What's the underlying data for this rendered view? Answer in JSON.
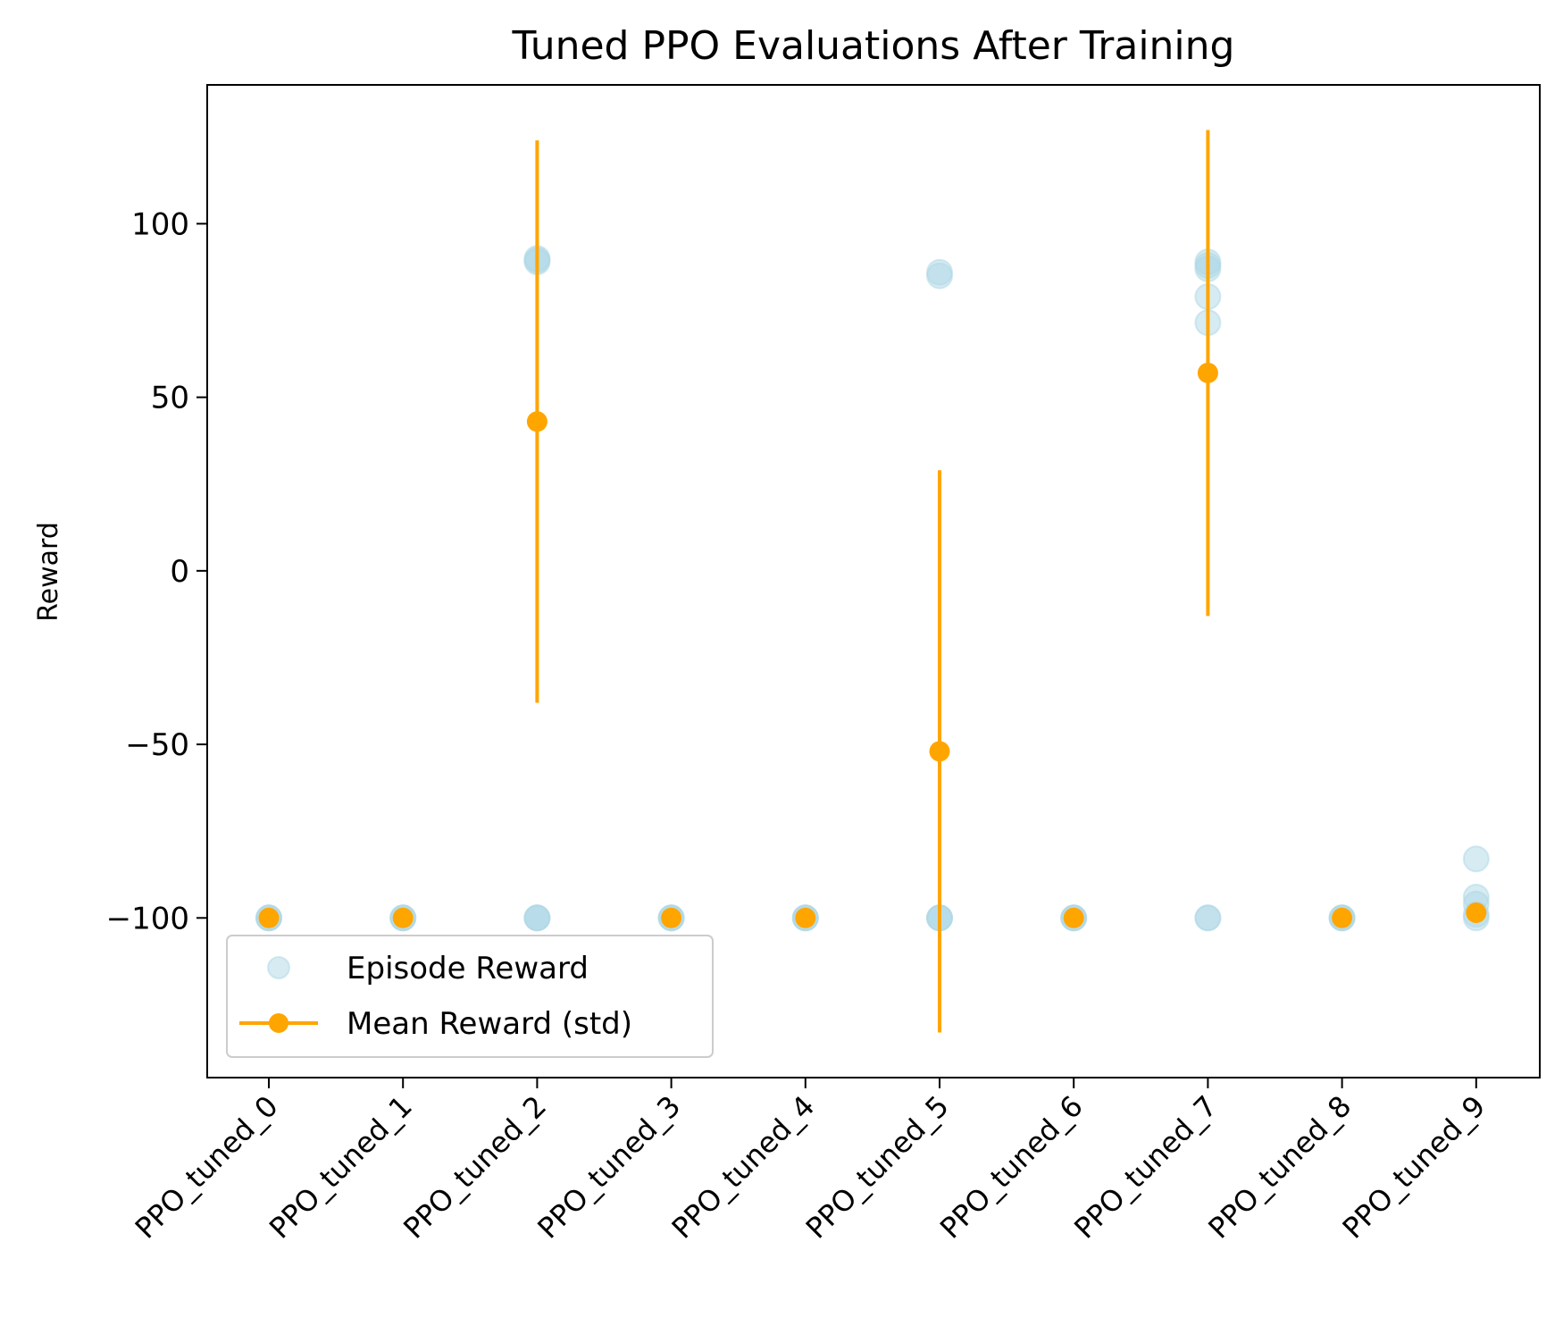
{
  "chart_data": {
    "type": "scatter",
    "title": "Tuned PPO Evaluations After Training",
    "xlabel": "",
    "ylabel": "Reward",
    "categories": [
      "PPO_tuned_0",
      "PPO_tuned_1",
      "PPO_tuned_2",
      "PPO_tuned_3",
      "PPO_tuned_4",
      "PPO_tuned_5",
      "PPO_tuned_6",
      "PPO_tuned_7",
      "PPO_tuned_8",
      "PPO_tuned_9"
    ],
    "ylim": [
      -146,
      140
    ],
    "yticks": [
      100,
      50,
      0,
      -50,
      -100
    ],
    "ytick_labels": [
      "100",
      "50",
      "0",
      "−50",
      "−100"
    ],
    "grid": false,
    "legend": {
      "position": "lower-left",
      "entries": [
        "Episode Reward",
        "Mean Reward (std)"
      ]
    },
    "series": [
      {
        "name": "Episode Reward",
        "kind": "scatter",
        "color": "#add8e6",
        "points": [
          {
            "x": 0,
            "y": -100
          },
          {
            "x": 0,
            "y": -100
          },
          {
            "x": 0,
            "y": -100
          },
          {
            "x": 1,
            "y": -100
          },
          {
            "x": 1,
            "y": -100
          },
          {
            "x": 1,
            "y": -100
          },
          {
            "x": 2,
            "y": 89
          },
          {
            "x": 2,
            "y": 90
          },
          {
            "x": 2,
            "y": 89.5
          },
          {
            "x": 2,
            "y": -100
          },
          {
            "x": 2,
            "y": -100
          },
          {
            "x": 2,
            "y": -100
          },
          {
            "x": 3,
            "y": -100
          },
          {
            "x": 3,
            "y": -100
          },
          {
            "x": 3,
            "y": -100
          },
          {
            "x": 4,
            "y": -100
          },
          {
            "x": 4,
            "y": -100
          },
          {
            "x": 4,
            "y": -100
          },
          {
            "x": 5,
            "y": 85
          },
          {
            "x": 5,
            "y": 86
          },
          {
            "x": 5,
            "y": -100
          },
          {
            "x": 5,
            "y": -100
          },
          {
            "x": 5,
            "y": -100
          },
          {
            "x": 6,
            "y": -100
          },
          {
            "x": 6,
            "y": -100
          },
          {
            "x": 6,
            "y": -100
          },
          {
            "x": 7,
            "y": 88
          },
          {
            "x": 7,
            "y": 89
          },
          {
            "x": 7,
            "y": 87
          },
          {
            "x": 7,
            "y": 79
          },
          {
            "x": 7,
            "y": 71.5
          },
          {
            "x": 7,
            "y": -100
          },
          {
            "x": 7,
            "y": -100
          },
          {
            "x": 8,
            "y": -100
          },
          {
            "x": 8,
            "y": -100
          },
          {
            "x": 8,
            "y": -100
          },
          {
            "x": 9,
            "y": -83
          },
          {
            "x": 9,
            "y": -94
          },
          {
            "x": 9,
            "y": -96
          },
          {
            "x": 9,
            "y": -99
          },
          {
            "x": 9,
            "y": -100
          }
        ]
      },
      {
        "name": "Mean Reward (std)",
        "kind": "errorbar",
        "color": "#ffa500",
        "points": [
          {
            "x": 0,
            "mean": -100,
            "std": 0
          },
          {
            "x": 1,
            "mean": -100,
            "std": 0
          },
          {
            "x": 2,
            "mean": 43,
            "std": 81
          },
          {
            "x": 3,
            "mean": -100,
            "std": 0
          },
          {
            "x": 4,
            "mean": -100,
            "std": 0
          },
          {
            "x": 5,
            "mean": -52,
            "std": 81
          },
          {
            "x": 6,
            "mean": -100,
            "std": 0
          },
          {
            "x": 7,
            "mean": 57,
            "std": 70
          },
          {
            "x": 8,
            "mean": -100,
            "std": 0
          },
          {
            "x": 9,
            "mean": -98.5,
            "std": 1
          }
        ]
      }
    ]
  }
}
